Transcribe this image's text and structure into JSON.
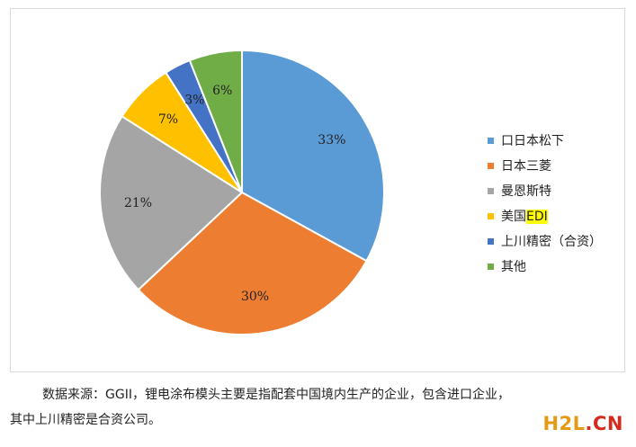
{
  "chart_data": {
    "type": "pie",
    "categories": [
      "口日本松下",
      "日本三菱",
      "曼恩斯特",
      "美国EDI",
      "上川精密（合资）",
      "其他"
    ],
    "values": [
      33,
      30,
      21,
      7,
      3,
      6
    ],
    "labels": [
      "33%",
      "30%",
      "21%",
      "7%",
      "3%",
      "6%"
    ],
    "colors": [
      "#5b9bd5",
      "#ed7d31",
      "#a5a5a5",
      "#ffc000",
      "#4472c4",
      "#70ad47"
    ],
    "legend_position": "right"
  },
  "legend": {
    "items": [
      {
        "label": "口日本松下",
        "color": "#5b9bd5"
      },
      {
        "label": "日本三菱",
        "color": "#ed7d31"
      },
      {
        "label": "曼恩斯特",
        "color": "#a5a5a5"
      },
      {
        "label_prefix": "美国",
        "label_highlight": "EDI",
        "color": "#ffc000"
      },
      {
        "label": "上川精密（合资）",
        "color": "#4472c4"
      },
      {
        "label": "其他",
        "color": "#70ad47"
      }
    ]
  },
  "caption": {
    "line1": "数据来源：GGII，锂电涂布模头主要是指配套中国境内生产的企业，包含进口企业，",
    "line2": "其中上川精密是合资公司。"
  },
  "watermark": {
    "part1": "H2L",
    "part2": ".CN"
  }
}
